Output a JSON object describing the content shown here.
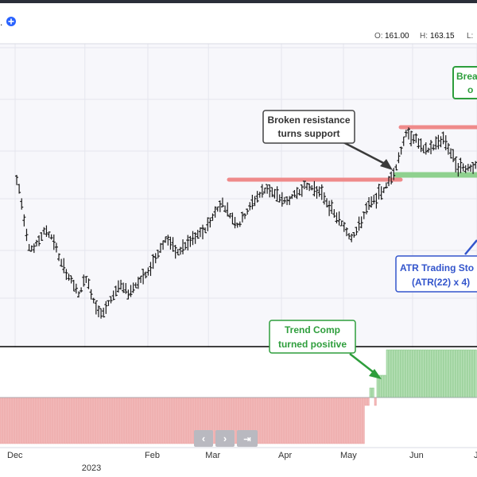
{
  "header": {
    "symbol_fragment": ".",
    "ohlc": [
      {
        "label": "O:",
        "value": "161.00"
      },
      {
        "label": "H:",
        "value": "163.15"
      },
      {
        "label": "L:",
        "value": ""
      }
    ]
  },
  "annotations": {
    "breakout": [
      "Brea",
      "o"
    ],
    "broken_resistance": [
      "Broken resistance",
      "turns support"
    ],
    "atr_stop": [
      "ATR Trading Sto",
      "(ATR(22) x 4)"
    ],
    "trend_comp": [
      "Trend Comp",
      "turned positive"
    ]
  },
  "nav": {
    "prev_icon": "chevron-left-icon",
    "next_icon": "chevron-right-icon",
    "last_icon": "jump-to-latest-icon"
  },
  "colors": {
    "background": "#ffffff",
    "price_panel": "#f7f7fb",
    "bar": "#1a1a1a",
    "resistance": "#ef8a8a",
    "support": "#8fd18f",
    "hist_positive": "#b5dfb5",
    "hist_negative": "#f2b8b8",
    "callout_green": "#2e9e3c",
    "callout_blue": "#3355cc",
    "callout_gray": "#444444"
  },
  "chart_data": [
    {
      "type": "ohlc",
      "x_tick_labels": [
        "Dec",
        "2023",
        "Feb",
        "Mar",
        "Apr",
        "May",
        "Jun",
        "J"
      ],
      "grid": true,
      "series": [
        {
          "style": "ohlc-bars",
          "close_path": [
            [
              0.035,
              228
            ],
            [
              0.04,
              238
            ],
            [
              0.06,
              310
            ],
            [
              0.07,
              315
            ],
            [
              0.08,
              305
            ],
            [
              0.095,
              290
            ],
            [
              0.11,
              300
            ],
            [
              0.13,
              335
            ],
            [
              0.15,
              355
            ],
            [
              0.165,
              372
            ],
            [
              0.18,
              350
            ],
            [
              0.2,
              385
            ],
            [
              0.215,
              398
            ],
            [
              0.23,
              380
            ],
            [
              0.25,
              360
            ],
            [
              0.27,
              370
            ],
            [
              0.29,
              355
            ],
            [
              0.31,
              345
            ],
            [
              0.33,
              320
            ],
            [
              0.35,
              300
            ],
            [
              0.37,
              320
            ],
            [
              0.39,
              310
            ],
            [
              0.41,
              300
            ],
            [
              0.43,
              290
            ],
            [
              0.45,
              270
            ],
            [
              0.465,
              255
            ],
            [
              0.48,
              270
            ],
            [
              0.5,
              285
            ],
            [
              0.52,
              265
            ],
            [
              0.54,
              248
            ],
            [
              0.56,
              238
            ],
            [
              0.58,
              248
            ],
            [
              0.6,
              255
            ],
            [
              0.62,
              245
            ],
            [
              0.64,
              235
            ],
            [
              0.66,
              238
            ],
            [
              0.68,
              250
            ],
            [
              0.7,
              270
            ],
            [
              0.72,
              285
            ],
            [
              0.735,
              300
            ],
            [
              0.75,
              290
            ],
            [
              0.77,
              262
            ],
            [
              0.79,
              250
            ],
            [
              0.81,
              235
            ],
            [
              0.83,
              212
            ],
            [
              0.85,
              170
            ],
            [
              0.87,
              175
            ],
            [
              0.89,
              192
            ],
            [
              0.91,
              185
            ],
            [
              0.93,
              175
            ],
            [
              0.95,
              200
            ],
            [
              0.96,
              212
            ],
            [
              0.98,
              212
            ],
            [
              1.0,
              210
            ]
          ]
        },
        {
          "style": "hline",
          "name": "resistance",
          "level": 226,
          "start": 0.48,
          "end": 0.84
        },
        {
          "style": "hline",
          "name": "resistance",
          "level": 160,
          "start": 0.84,
          "end": 1.0
        },
        {
          "style": "hline",
          "name": "support",
          "level": 220,
          "start": 0.83,
          "end": 1.0
        }
      ]
    },
    {
      "type": "bar",
      "series": [
        {
          "name": "negative",
          "value": -1,
          "start": 0.0,
          "end": 0.765
        },
        {
          "name": "mixed",
          "value": 0.3,
          "start": 0.765,
          "end": 0.81
        },
        {
          "name": "positive",
          "value": 1,
          "start": 0.81,
          "end": 1.0
        }
      ]
    }
  ]
}
